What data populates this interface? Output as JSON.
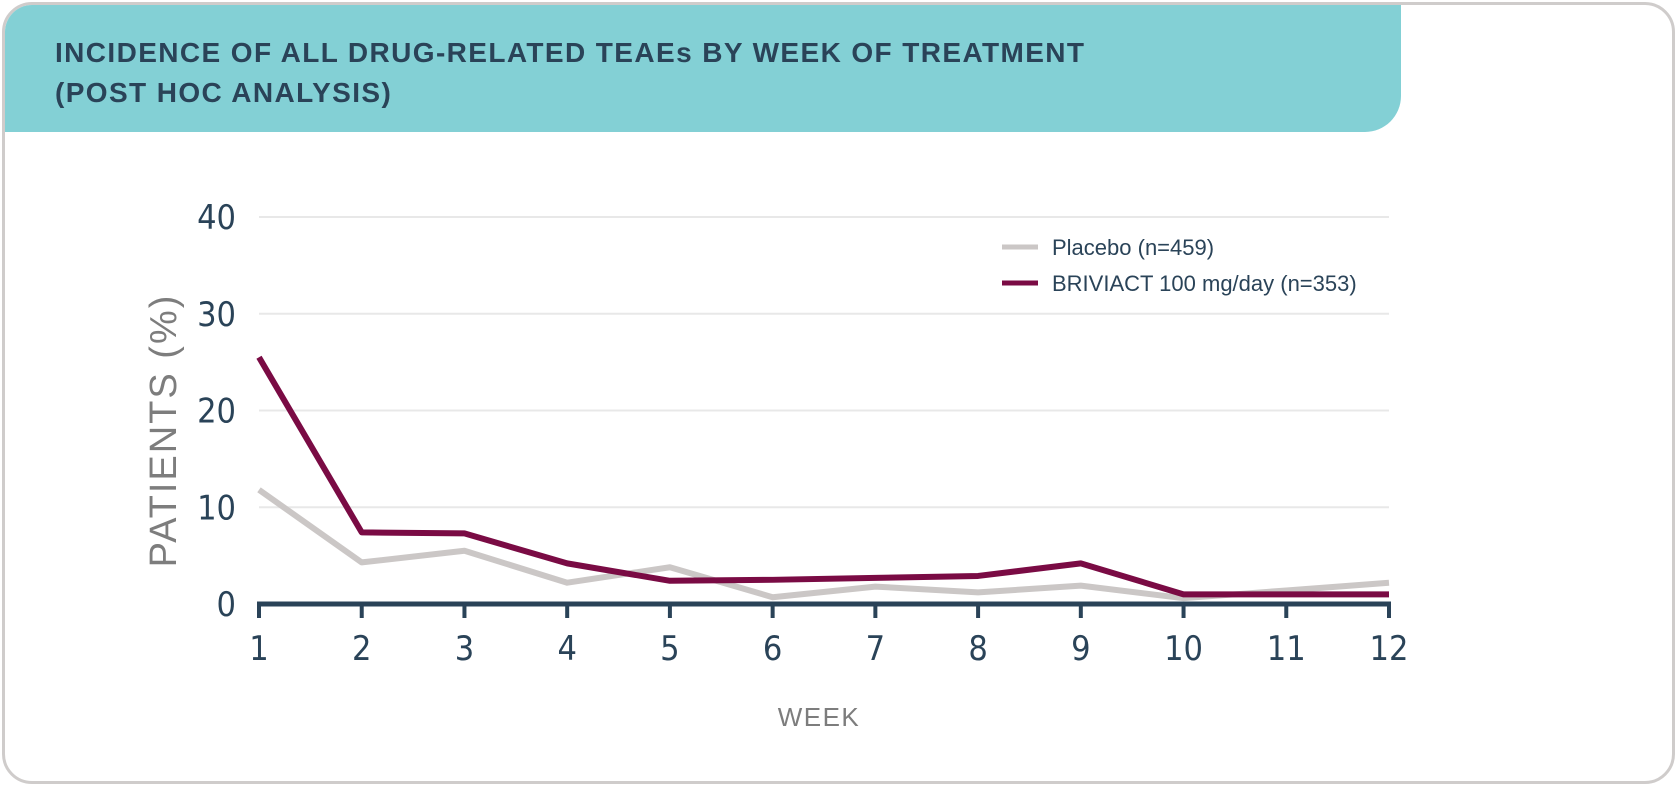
{
  "title": {
    "line1": "INCIDENCE OF ALL DRUG-RELATED TEAEs BY WEEK OF TREATMENT",
    "line2": "(POST HOC ANALYSIS)"
  },
  "colors": {
    "banner": "#83d0d5",
    "title_text": "#2a4358",
    "axis": "#2a4358",
    "grid": "#e8e8e8",
    "axis_label": "#7d7d7d",
    "card_border": "#cfcccb"
  },
  "chart_data": {
    "type": "line",
    "title": "INCIDENCE OF ALL DRUG-RELATED TEAEs BY WEEK OF TREATMENT (POST HOC ANALYSIS)",
    "xlabel": "WEEK",
    "ylabel": "PATIENTS (%)",
    "x": [
      1,
      2,
      3,
      4,
      5,
      6,
      7,
      8,
      9,
      10,
      11,
      12
    ],
    "x_tick_labels": [
      "1",
      "2",
      "3",
      "4",
      "5",
      "6",
      "7",
      "8",
      "9",
      "10",
      "11",
      "12"
    ],
    "y_ticks": [
      0,
      10,
      20,
      30,
      40
    ],
    "y_tick_labels": [
      "0",
      "10",
      "20",
      "30",
      "40"
    ],
    "ylim": [
      0,
      40
    ],
    "grid": true,
    "legend_position": "top-right",
    "series": [
      {
        "name": "Placebo (n=459)",
        "color": "#cbc7c6",
        "values": [
          11.8,
          4.3,
          5.5,
          2.2,
          3.8,
          0.7,
          1.8,
          1.2,
          1.9,
          0.6,
          1.4,
          2.2
        ]
      },
      {
        "name": "BRIVIACT 100 mg/day (n=353)",
        "color": "#7a0b44",
        "values": [
          25.5,
          7.4,
          7.3,
          4.2,
          2.4,
          2.5,
          2.7,
          2.9,
          4.2,
          1.0,
          1.0,
          1.0
        ]
      }
    ]
  }
}
